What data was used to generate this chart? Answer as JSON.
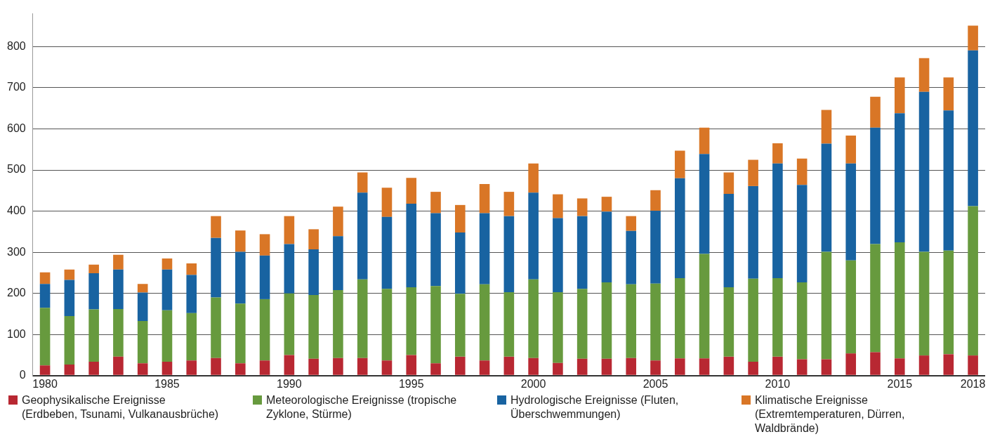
{
  "chart_data": {
    "type": "bar",
    "stacked": true,
    "categories": [
      "1980",
      null,
      null,
      null,
      null,
      "1985",
      null,
      null,
      null,
      null,
      "1990",
      null,
      null,
      null,
      null,
      "1995",
      null,
      null,
      null,
      null,
      "2000",
      null,
      null,
      null,
      null,
      "2005",
      null,
      null,
      null,
      null,
      "2010",
      null,
      null,
      null,
      null,
      "2015",
      null,
      null,
      "2018"
    ],
    "series": [
      {
        "name": "Geophysikalische Ereignisse (Erdbeben, Tsunami, Vulkanausbrüche)",
        "color": "#b82832",
        "values": [
          25,
          27,
          34,
          46,
          30,
          34,
          37,
          43,
          30,
          37,
          50,
          41,
          43,
          43,
          37,
          50,
          30,
          46,
          37,
          46,
          43,
          31,
          41,
          41,
          43,
          37,
          42,
          42,
          46,
          34,
          46,
          40,
          40,
          54,
          57,
          42,
          49,
          52,
          49
        ]
      },
      {
        "name": "Meteorologische Ereignisse (tropische Zyklone, Stürme)",
        "color": "#679a3e",
        "values": [
          140,
          118,
          127,
          116,
          103,
          125,
          115,
          147,
          145,
          149,
          150,
          155,
          165,
          191,
          174,
          165,
          188,
          153,
          185,
          157,
          191,
          172,
          170,
          186,
          179,
          187,
          195,
          254,
          169,
          202,
          191,
          187,
          261,
          226,
          263,
          282,
          252,
          252,
          363
        ]
      },
      {
        "name": "Hydrologische Ereignisse (Fluten, Überschwemmungen)",
        "color": "#1863a1",
        "values": [
          58,
          88,
          88,
          96,
          69,
          99,
          93,
          145,
          126,
          106,
          120,
          111,
          131,
          211,
          175,
          203,
          177,
          149,
          173,
          185,
          211,
          180,
          177,
          172,
          130,
          177,
          243,
          243,
          227,
          225,
          279,
          237,
          263,
          236,
          283,
          314,
          389,
          341,
          379
        ]
      },
      {
        "name": "Klimatische Ereignisse (Extremtemperaturen, Dürren, Waldbrände)",
        "color": "#d97626",
        "values": [
          28,
          25,
          21,
          36,
          21,
          27,
          28,
          53,
          52,
          52,
          68,
          49,
          72,
          49,
          71,
          63,
          52,
          67,
          71,
          59,
          71,
          58,
          43,
          36,
          36,
          50,
          67,
          64,
          52,
          64,
          49,
          64,
          82,
          68,
          75,
          87,
          82,
          80,
          60
        ]
      }
    ],
    "ylim": [
      0,
      880
    ],
    "yticks": [
      0,
      100,
      200,
      300,
      400,
      500,
      600,
      700,
      800
    ],
    "grid": "y",
    "legend": "bottom"
  }
}
